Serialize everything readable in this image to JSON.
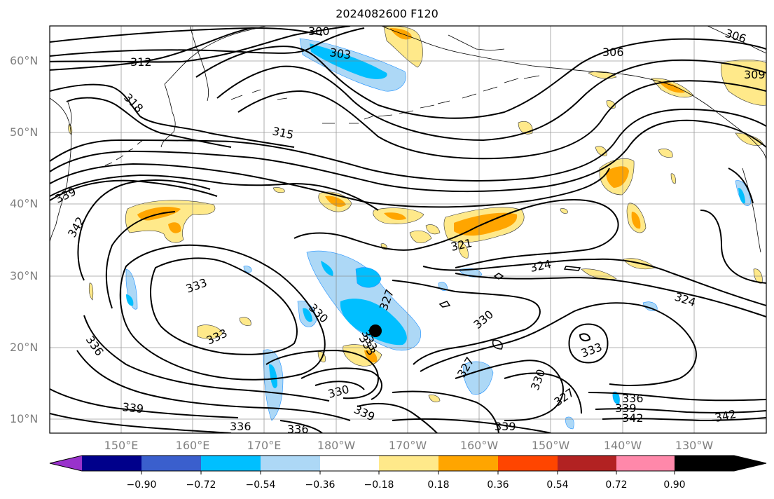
{
  "title": "2024082600 F120",
  "lat_labels": [
    "60°N",
    "50°N",
    "40°N",
    "30°N",
    "20°N",
    "10°N"
  ],
  "lon_labels": [
    "150°E",
    "160°E",
    "170°E",
    "180°W",
    "170°W",
    "160°W",
    "150°W",
    "140°W",
    "130°W"
  ],
  "colorbar": {
    "ticks": [
      "−0.90",
      "−0.72",
      "−0.54",
      "−0.36",
      "−0.18",
      "0.18",
      "0.36",
      "0.54",
      "0.72",
      "0.90"
    ],
    "colors": [
      "#9932CC",
      "#00008B",
      "#3A5FCD",
      "#00BFFF",
      "#ADD8F6",
      "#FFFFFF",
      "#FFE98A",
      "#FFA500",
      "#FF4500",
      "#B22222",
      "#FF88AA"
    ]
  },
  "contour_labels": [
    "300",
    "303",
    "306",
    "306",
    "309",
    "312",
    "318",
    "315",
    "339",
    "342",
    "321",
    "324",
    "324",
    "333",
    "327",
    "330",
    "333",
    "333",
    "330",
    "333",
    "336",
    "327",
    "330",
    "327",
    "333",
    "330",
    "336",
    "339",
    "342",
    "339",
    "336",
    "336",
    "339",
    "342",
    "339"
  ],
  "storm_marker": "black-dot"
}
